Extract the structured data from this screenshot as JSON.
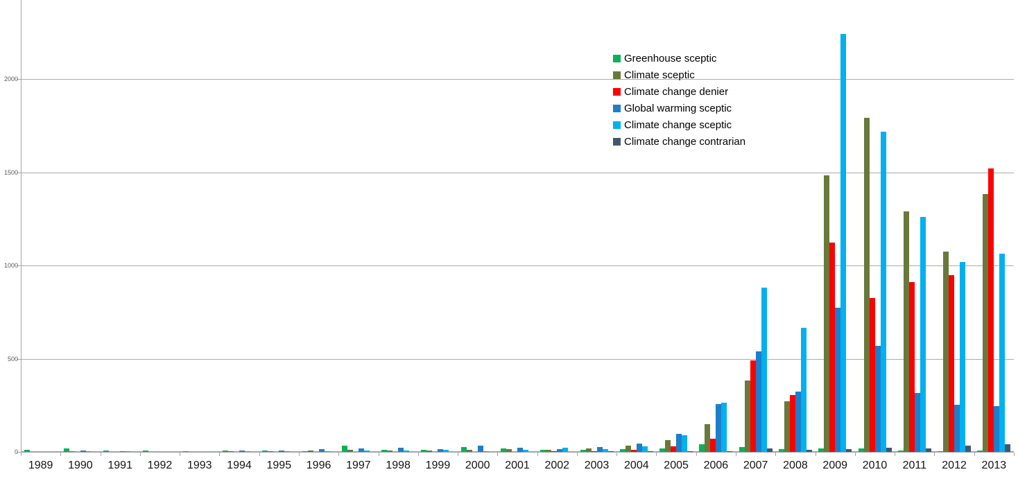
{
  "chart_data": {
    "type": "bar",
    "title": "",
    "xlabel": "",
    "ylabel": "",
    "categories": [
      "1989",
      "1990",
      "1991",
      "1992",
      "1993",
      "1994",
      "1995",
      "1996",
      "1997",
      "1998",
      "1999",
      "2000",
      "2001",
      "2002",
      "2003",
      "2004",
      "2005",
      "2006",
      "2007",
      "2008",
      "2009",
      "2010",
      "2011",
      "2012",
      "2013"
    ],
    "series": [
      {
        "name": "Greenhouse sceptic",
        "color": "#0cb155",
        "values": [
          10,
          17,
          7,
          7,
          2,
          8,
          8,
          3,
          32,
          10,
          12,
          27,
          17,
          12,
          12,
          16,
          20,
          40,
          25,
          15,
          20,
          18,
          8,
          5,
          8
        ]
      },
      {
        "name": "Climate sceptic",
        "color": "#68793b",
        "values": [
          0,
          2,
          0,
          0,
          0,
          2,
          2,
          8,
          10,
          7,
          7,
          12,
          15,
          12,
          20,
          35,
          65,
          148,
          385,
          270,
          1485,
          1795,
          1290,
          1075,
          1385
        ]
      },
      {
        "name": "Climate change denier",
        "color": "#fe0000",
        "values": [
          0,
          0,
          0,
          0,
          0,
          0,
          0,
          0,
          0,
          0,
          0,
          0,
          0,
          5,
          5,
          10,
          30,
          70,
          490,
          305,
          1125,
          825,
          910,
          950,
          1520
        ]
      },
      {
        "name": "Global warming sceptic",
        "color": "#1e7ec8",
        "values": [
          0,
          8,
          2,
          0,
          0,
          8,
          8,
          15,
          19,
          24,
          15,
          34,
          22,
          15,
          25,
          43,
          95,
          255,
          540,
          325,
          775,
          570,
          315,
          253,
          245
        ]
      },
      {
        "name": "Climate change sceptic",
        "color": "#00b0f0",
        "values": [
          0,
          2,
          2,
          0,
          0,
          2,
          2,
          2,
          7,
          6,
          12,
          5,
          12,
          22,
          16,
          31,
          90,
          265,
          880,
          665,
          2245,
          1720,
          1260,
          1020,
          1065
        ]
      },
      {
        "name": "Climate change contrarian",
        "color": "#3e576f",
        "values": [
          0,
          0,
          0,
          0,
          0,
          0,
          0,
          0,
          0,
          0,
          0,
          0,
          0,
          0,
          2,
          2,
          2,
          3,
          20,
          13,
          16,
          22,
          20,
          35,
          40
        ]
      }
    ],
    "ylim": [
      0,
      2426
    ],
    "yticks": [
      0,
      500,
      1000,
      1500,
      2000
    ],
    "ytick_labels": [
      "0",
      "500",
      "1000",
      "1500",
      "2000"
    ],
    "grid": true,
    "legend_position": "upper-middle-right"
  },
  "layout_colors": {
    "gridline": "#ababab",
    "axis": "#a6a6a6",
    "x_label_color": "#141414",
    "y_label_color": "#595959",
    "background": "#ffffff"
  }
}
